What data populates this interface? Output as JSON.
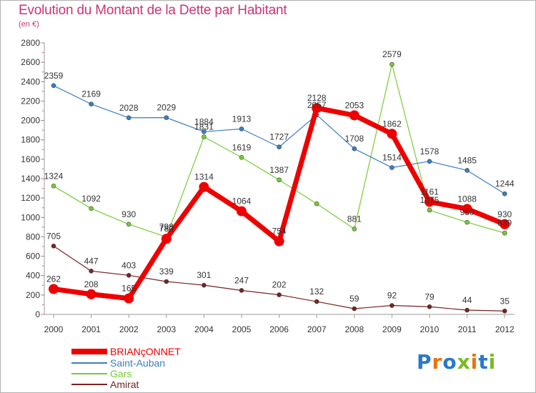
{
  "title": "Evolution du Montant de la Dette par Habitant",
  "unit": "(en €)",
  "logo": "Proxiti",
  "chart_data": {
    "type": "line",
    "x": [
      "2000",
      "2001",
      "2002",
      "2003",
      "2004",
      "2005",
      "2006",
      "2007",
      "2008",
      "2009",
      "2010",
      "2011",
      "2012"
    ],
    "ylim": [
      0,
      2800
    ],
    "yticks": [
      0,
      200,
      400,
      600,
      800,
      1000,
      1200,
      1400,
      1600,
      1800,
      2000,
      2200,
      2400,
      2600,
      2800
    ],
    "grid": false,
    "legend_position": "bottom-left",
    "series": [
      {
        "name": "BRIANçONNET",
        "color": "#ee0000",
        "values": [
          262,
          208,
          165,
          780,
          1314,
          1064,
          754,
          2128,
          2053,
          1862,
          1161,
          1088,
          930
        ]
      },
      {
        "name": "Saint-Auban",
        "color": "#3a7ec0",
        "values": [
          2359,
          2169,
          2028,
          2029,
          1884,
          1913,
          1727,
          2057,
          1708,
          1514,
          1578,
          1485,
          1244
        ]
      },
      {
        "name": "Gars",
        "color": "#77cc33",
        "values": [
          1324,
          1092,
          930,
          798,
          1831,
          1619,
          1387,
          1141,
          881,
          2579,
          1075,
          950,
          839
        ]
      },
      {
        "name": "Amirat",
        "color": "#772222",
        "values": [
          705,
          447,
          403,
          339,
          301,
          247,
          202,
          132,
          59,
          92,
          79,
          44,
          35
        ]
      }
    ],
    "data_labels": [
      {
        "series": 0,
        "labels": [
          "262",
          "208",
          "165",
          "780",
          "1314",
          "1064",
          "754",
          "2128",
          "2053",
          "1862",
          "1161",
          "1088",
          "930"
        ]
      },
      {
        "series": 1,
        "labels": [
          "2359",
          "2169",
          "2028",
          "2029",
          "1884",
          "1913",
          "1727",
          "2057",
          "1708",
          "1514",
          "1578",
          "1485",
          "1244"
        ]
      },
      {
        "series": 2,
        "labels": [
          "1324",
          "1092",
          "930",
          "798",
          "1831",
          "1619",
          "1387",
          "",
          "881",
          "2579",
          "1075",
          "950",
          "839"
        ]
      },
      {
        "series": 3,
        "labels": [
          "705",
          "447",
          "403",
          "339",
          "301",
          "247",
          "202",
          "132",
          "59",
          "92",
          "79",
          "44",
          "35"
        ]
      }
    ]
  }
}
